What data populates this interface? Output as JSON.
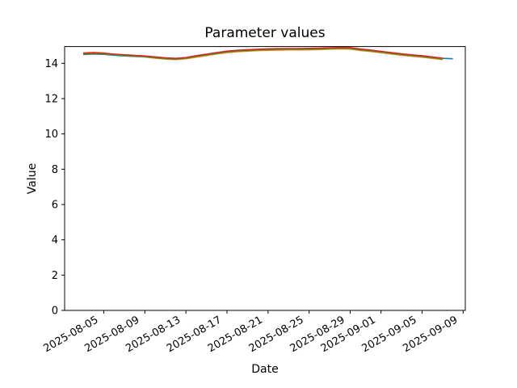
{
  "chart_data": {
    "type": "line",
    "title": "Parameter values",
    "xlabel": "Date",
    "ylabel": "Value",
    "grid": false,
    "legend": false,
    "background": "#ffffff",
    "spine_color": "#000000",
    "xlim": [
      "2025-08-01T04:30:00Z",
      "2025-09-09T05:00:00Z"
    ],
    "ylim": [
      0,
      14.95
    ],
    "yticks": [
      0,
      2,
      4,
      6,
      8,
      10,
      12,
      14
    ],
    "xticks": [
      "2025-08-05",
      "2025-08-09",
      "2025-08-13",
      "2025-08-17",
      "2025-08-21",
      "2025-08-25",
      "2025-08-29",
      "2025-09-01",
      "2025-09-05",
      "2025-09-09"
    ],
    "x": [
      "2025-08-03",
      "2025-08-04",
      "2025-08-05",
      "2025-08-06",
      "2025-08-07",
      "2025-08-08",
      "2025-08-09",
      "2025-08-10",
      "2025-08-11",
      "2025-08-12",
      "2025-08-13",
      "2025-08-14",
      "2025-08-15",
      "2025-08-16",
      "2025-08-17",
      "2025-08-18",
      "2025-08-19",
      "2025-08-20",
      "2025-08-21",
      "2025-08-22",
      "2025-08-23",
      "2025-08-24",
      "2025-08-25",
      "2025-08-26",
      "2025-08-27",
      "2025-08-28",
      "2025-08-29",
      "2025-08-30",
      "2025-08-31",
      "2025-09-01",
      "2025-09-02",
      "2025-09-03",
      "2025-09-04",
      "2025-09-05",
      "2025-09-06",
      "2025-09-07",
      "2025-09-08"
    ],
    "series": [
      {
        "name": "blue",
        "color": "#1f77b4",
        "values": [
          14.5,
          14.53,
          14.51,
          14.46,
          14.42,
          14.39,
          14.36,
          14.3,
          14.25,
          14.22,
          14.27,
          14.37,
          14.46,
          14.55,
          14.63,
          14.68,
          14.71,
          14.74,
          14.76,
          14.77,
          14.78,
          14.78,
          14.79,
          14.8,
          14.82,
          14.84,
          14.83,
          14.75,
          14.69,
          14.62,
          14.55,
          14.48,
          14.42,
          14.37,
          14.31,
          14.28,
          14.26
        ]
      },
      {
        "name": "orange",
        "color": "#ff7f0e",
        "values": [
          14.6,
          14.62,
          14.59,
          14.5,
          14.44,
          14.4,
          14.36,
          14.29,
          14.24,
          14.21,
          14.26,
          14.35,
          14.44,
          14.53,
          14.61,
          14.66,
          14.69,
          14.72,
          14.74,
          14.75,
          14.76,
          14.76,
          14.77,
          14.78,
          14.8,
          14.82,
          14.81,
          14.73,
          14.67,
          14.6,
          14.53,
          14.46,
          14.4,
          14.35,
          14.28,
          14.21,
          null
        ]
      },
      {
        "name": "green",
        "color": "#2ca02c",
        "values": [
          14.52,
          14.55,
          14.53,
          14.48,
          14.44,
          14.41,
          14.38,
          14.32,
          14.27,
          14.24,
          14.29,
          14.39,
          14.48,
          14.57,
          14.65,
          14.7,
          14.73,
          14.76,
          14.78,
          14.79,
          14.8,
          14.8,
          14.81,
          14.82,
          14.84,
          14.86,
          14.85,
          14.77,
          14.71,
          14.64,
          14.57,
          14.5,
          14.44,
          14.39,
          14.32,
          14.25,
          null
        ]
      },
      {
        "name": "red",
        "color": "#d62728",
        "values": [
          14.56,
          14.59,
          14.57,
          14.52,
          14.48,
          14.45,
          14.42,
          14.36,
          14.31,
          14.28,
          14.33,
          14.43,
          14.52,
          14.61,
          14.69,
          14.74,
          14.77,
          14.8,
          14.82,
          14.83,
          14.84,
          14.84,
          14.85,
          14.86,
          14.88,
          14.9,
          14.89,
          14.81,
          14.75,
          14.68,
          14.61,
          14.54,
          14.48,
          14.43,
          14.36,
          14.29,
          null
        ]
      }
    ]
  }
}
